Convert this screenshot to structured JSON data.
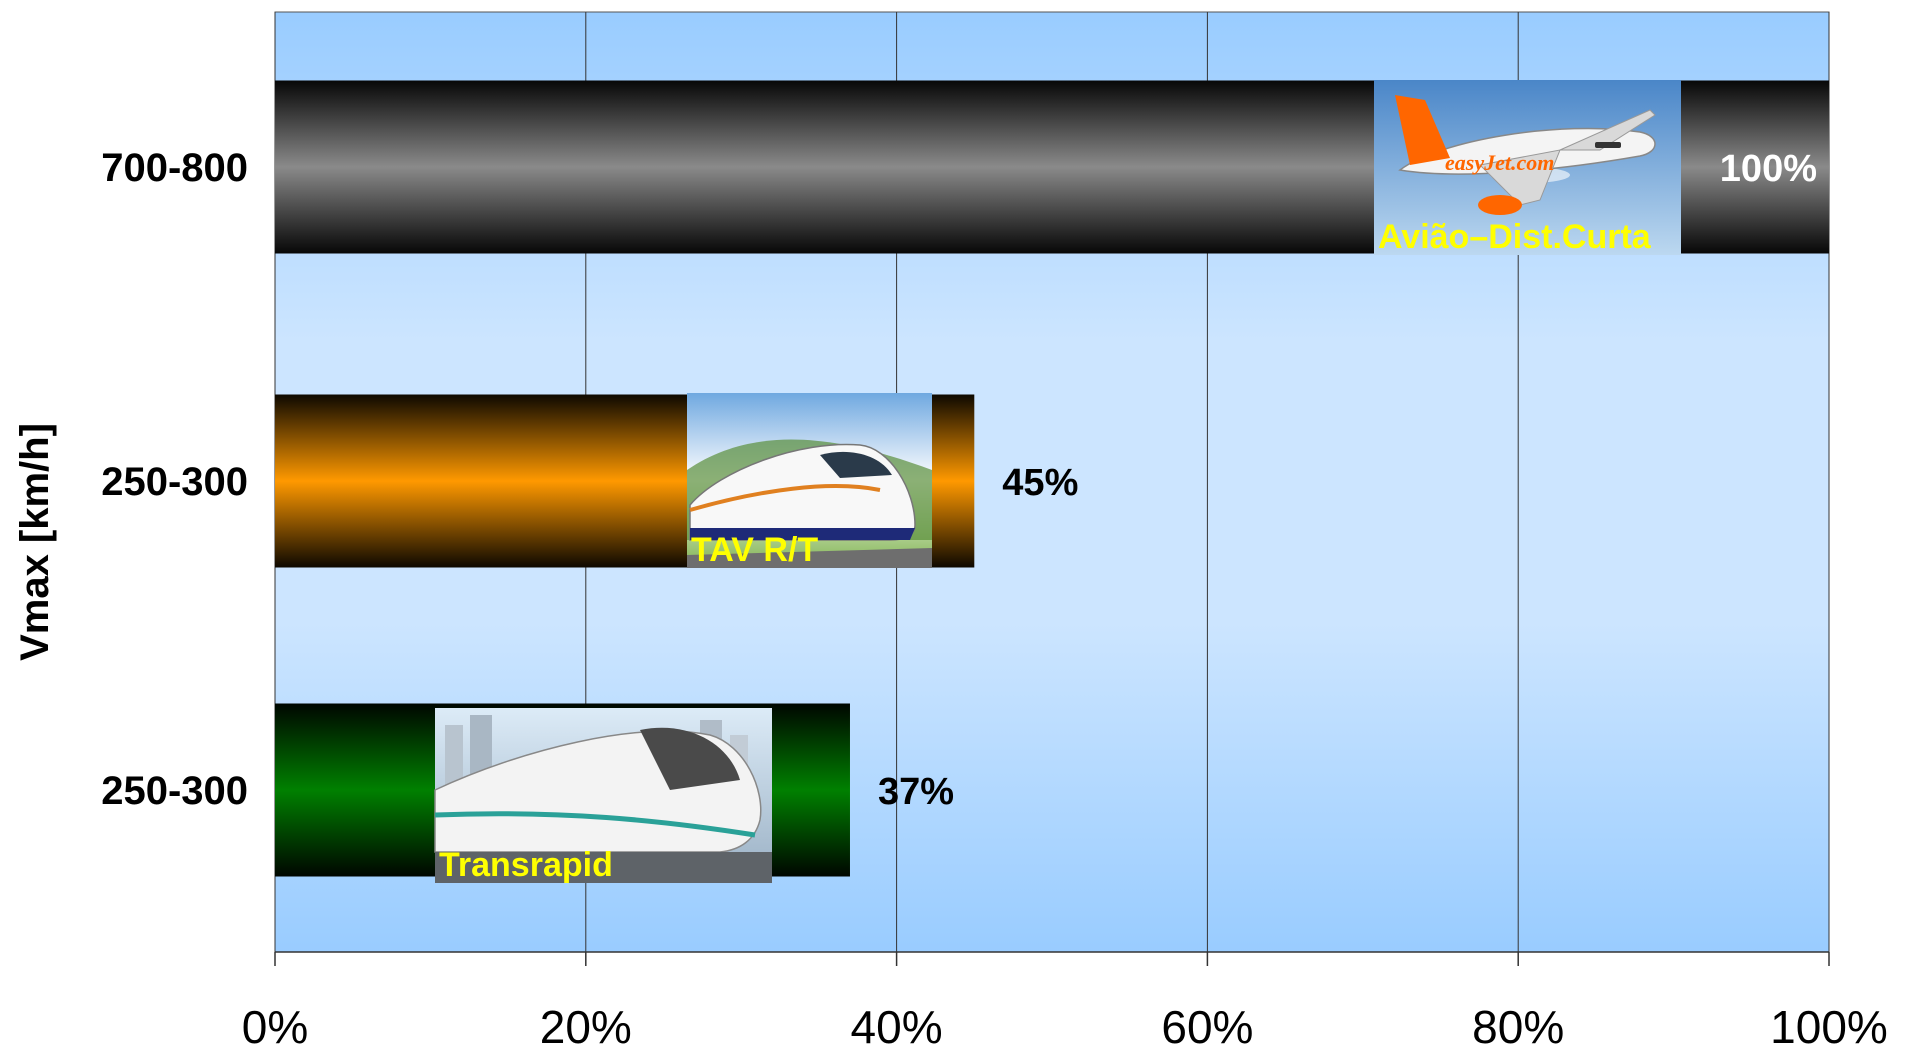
{
  "chart_data": {
    "type": "bar",
    "orientation": "horizontal",
    "ylabel": "Vmax [km/h]",
    "xlabel": "",
    "xlim": [
      0,
      100
    ],
    "x_ticks": [
      "0%",
      "20%",
      "40%",
      "60%",
      "80%",
      "100%"
    ],
    "grid": true,
    "categories": [
      "700-800",
      "250-300",
      "250-300"
    ],
    "values": [
      100,
      45,
      37
    ],
    "value_labels": [
      "100%",
      "45%",
      "37%"
    ],
    "image_labels": [
      "Avião–Dist.Curta",
      "TAV R/T",
      "Transrapid"
    ],
    "image_icons": [
      "airplane-icon",
      "high-speed-train-icon",
      "maglev-train-icon"
    ],
    "bar_colors": [
      "#8a8a8a",
      "#ff9900",
      "#008000"
    ],
    "value_label_colors": [
      "#ffffff",
      "#000000",
      "#000000"
    ],
    "plot_background": [
      "#99ccff",
      "#cce5ff"
    ]
  }
}
